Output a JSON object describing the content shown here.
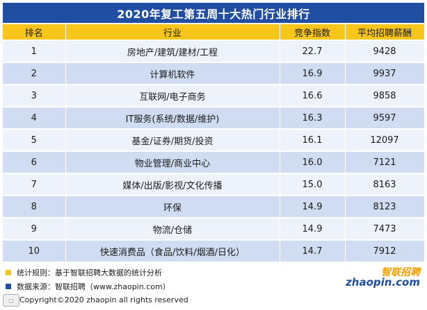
{
  "title": "2020年复工第五周十大热门行业排行",
  "table": {
    "headers": [
      "排名",
      "行业",
      "竞争指数",
      "平均招聘薪酬"
    ],
    "rows": [
      {
        "rank": "1",
        "industry": "房地产/建筑/建材/工程",
        "index": "22.7",
        "salary": "9428"
      },
      {
        "rank": "2",
        "industry": "计算机软件",
        "index": "16.9",
        "salary": "9937"
      },
      {
        "rank": "3",
        "industry": "互联网/电子商务",
        "index": "16.6",
        "salary": "9858"
      },
      {
        "rank": "4",
        "industry": "IT服务(系统/数据/维护)",
        "index": "16.3",
        "salary": "9597"
      },
      {
        "rank": "5",
        "industry": "基金/证券/期货/投资",
        "index": "16.1",
        "salary": "12097"
      },
      {
        "rank": "6",
        "industry": "物业管理/商业中心",
        "index": "16.0",
        "salary": "7121"
      },
      {
        "rank": "7",
        "industry": "媒体/出版/影视/文化传播",
        "index": "15.0",
        "salary": "8163"
      },
      {
        "rank": "8",
        "industry": "环保",
        "index": "14.9",
        "salary": "8123"
      },
      {
        "rank": "9",
        "industry": "物流/仓储",
        "index": "14.9",
        "salary": "7473"
      },
      {
        "rank": "10",
        "industry": "快速消费品（食品/饮料/烟酒/日化）",
        "index": "14.7",
        "salary": "7912"
      }
    ]
  },
  "notes": {
    "rule": "统计规则：基于智联招聘大数据的统计分析",
    "source": "数据来源：智联招聘（www.zhaopin.com）"
  },
  "copyright": "Copyright©2020 zhaopin all rights reserved",
  "brand": {
    "cn": "智联招聘",
    "en": "zhaopin.com"
  },
  "colors": {
    "title_bg": "#1f4ea3",
    "header_bg": "#f8c61a",
    "row_light": "#eef3fb",
    "row_dark": "#cfdcf1"
  }
}
